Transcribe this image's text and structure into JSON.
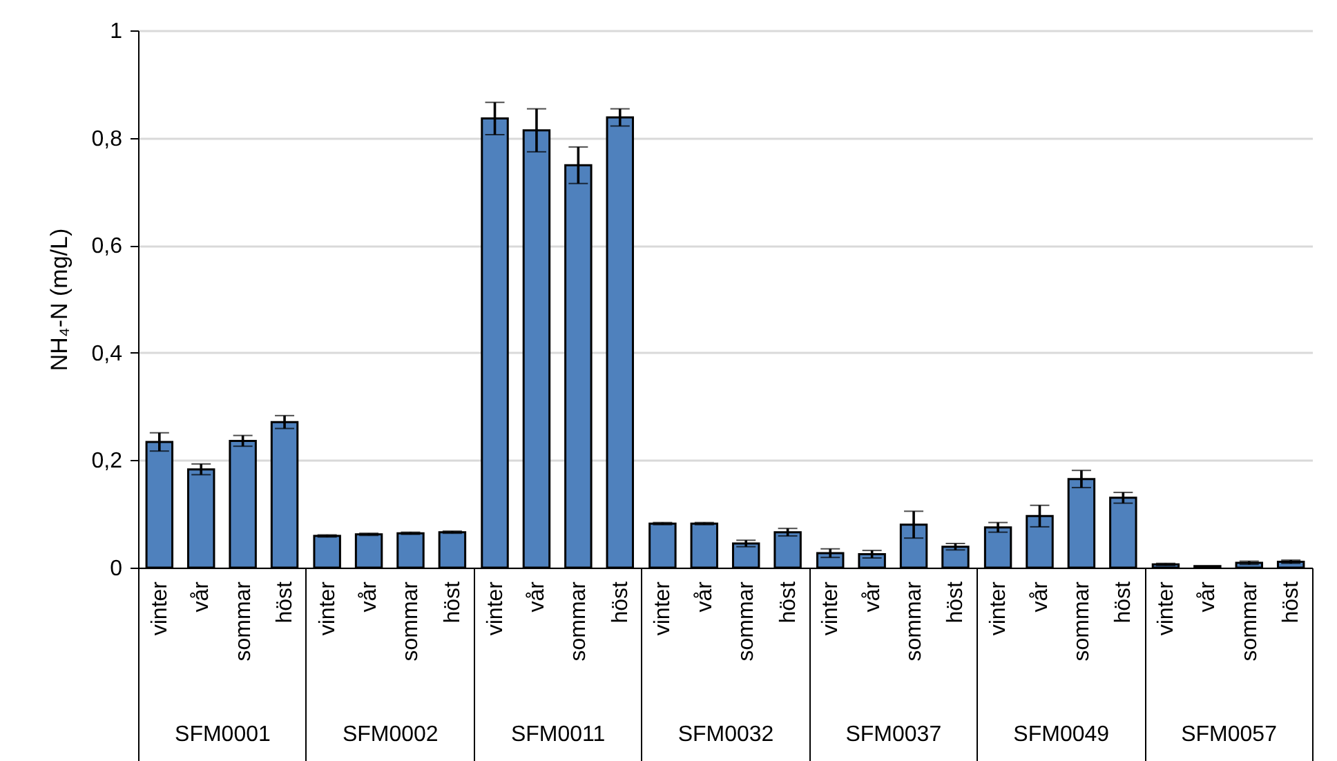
{
  "chart_data": {
    "type": "bar",
    "ylabel": "NH₄-N (mg/L)",
    "categories": [
      "SFM0001",
      "SFM0002",
      "SFM0011",
      "SFM0032",
      "SFM0037",
      "SFM0049",
      "SFM0057"
    ],
    "series": [
      {
        "name": "vinter",
        "color": "#4f81bd",
        "values": [
          0.234,
          0.059,
          0.836,
          0.082,
          0.027,
          0.075,
          0.006
        ],
        "errors": [
          0.017,
          0.002,
          0.03,
          0.002,
          0.008,
          0.009,
          0.002
        ]
      },
      {
        "name": "vår",
        "color": "#4f81bd",
        "values": [
          0.183,
          0.062,
          0.814,
          0.082,
          0.025,
          0.096,
          0.003
        ],
        "errors": [
          0.01,
          0.002,
          0.04,
          0.002,
          0.007,
          0.02,
          null
        ]
      },
      {
        "name": "sommar",
        "color": "#4f81bd",
        "values": [
          0.236,
          0.064,
          0.749,
          0.045,
          0.08,
          0.165,
          0.009
        ],
        "errors": [
          0.01,
          0.002,
          0.034,
          0.006,
          0.025,
          0.016,
          0.003
        ]
      },
      {
        "name": "höst",
        "color": "#4f81bd",
        "values": [
          0.271,
          0.066,
          0.838,
          0.066,
          0.039,
          0.13,
          0.011
        ],
        "errors": [
          0.012,
          0.002,
          0.016,
          0.007,
          0.006,
          0.01,
          0.003
        ]
      }
    ],
    "ylim": [
      0,
      1
    ],
    "yticks": [
      0,
      {
        "value": 0.2,
        "label": "0,2"
      },
      {
        "value": 0.4,
        "label": "0,4"
      },
      {
        "value": 0.6,
        "label": "0,6"
      },
      {
        "value": 0.8,
        "label": "0,8"
      },
      1
    ],
    "grid": "y",
    "legend": false
  }
}
